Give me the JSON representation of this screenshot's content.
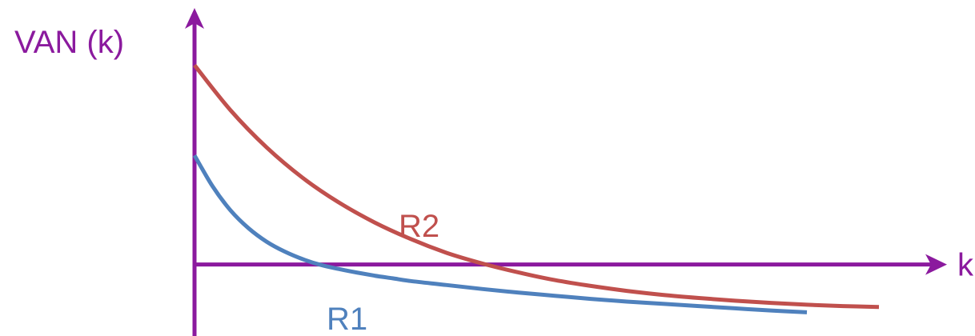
{
  "chart_data": {
    "type": "line",
    "title": "",
    "xlabel": "k",
    "ylabel": "VAN (k)",
    "grid": false,
    "legend": "none",
    "xlim": [
      0,
      10
    ],
    "ylim": [
      -1.6,
      5.2
    ],
    "axis_color": "#8B1A9E",
    "series": [
      {
        "name": "R1",
        "color": "#4F81BD",
        "x": [
          0,
          0.25,
          0.5,
          0.75,
          1,
          1.25,
          1.5,
          1.75,
          2,
          2.25,
          2.5,
          2.75,
          3,
          3.5,
          4,
          4.5,
          5,
          5.5,
          6,
          6.5,
          7,
          7.5,
          8,
          8.5
        ],
        "y": [
          2.44,
          1.75,
          1.21,
          0.81,
          0.51,
          0.29,
          0.12,
          -0.01,
          -0.1,
          -0.18,
          -0.25,
          -0.31,
          -0.37,
          -0.46,
          -0.55,
          -0.63,
          -0.7,
          -0.77,
          -0.83,
          -0.88,
          -0.93,
          -0.98,
          -1.03,
          -1.07
        ]
      },
      {
        "name": "R2",
        "color": "#C0504D",
        "x": [
          0,
          0.5,
          1,
          1.5,
          2,
          2.5,
          3,
          3.5,
          4,
          4.5,
          5,
          5.5,
          6,
          6.5,
          7,
          7.5,
          8,
          8.5,
          9,
          9.5
        ],
        "y": [
          4.46,
          3.45,
          2.62,
          1.94,
          1.39,
          0.94,
          0.57,
          0.26,
          0.02,
          -0.18,
          -0.35,
          -0.48,
          -0.59,
          -0.68,
          -0.75,
          -0.81,
          -0.86,
          -0.9,
          -0.93,
          -0.95
        ]
      }
    ]
  }
}
